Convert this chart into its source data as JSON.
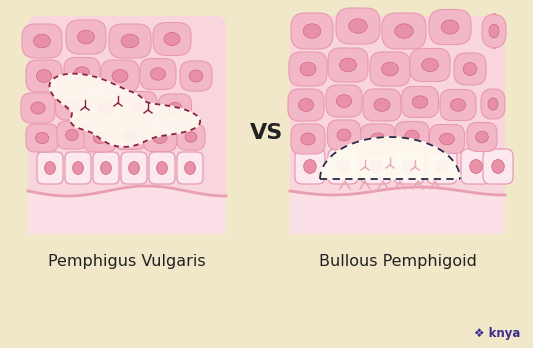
{
  "bg_color": "#f0e8c8",
  "panel_bg": "#f9d5de",
  "cell_fill_upper": "#f2b8c8",
  "cell_fill_lower": "#fce8ef",
  "cell_edge": "#e89ab0",
  "nucleus_fill": "#e890a8",
  "nucleus_edge": "#d06880",
  "dermis_fill": "#fce0e8",
  "dermis_base": "#e8a0b0",
  "blister_fill": "#fefaf0",
  "dashed_pv": "#8b2040",
  "dashed_bp": "#2a2a4a",
  "anchor_color": "#e8a8b8",
  "vs_color": "#222222",
  "label_color": "#222222",
  "knya_color": "#3b2d8f",
  "label_pv": "Pemphigus Vulgaris",
  "label_bp": "Bullous Pemphigoid",
  "vs_text": "VS",
  "knya_text": "❖ knya"
}
